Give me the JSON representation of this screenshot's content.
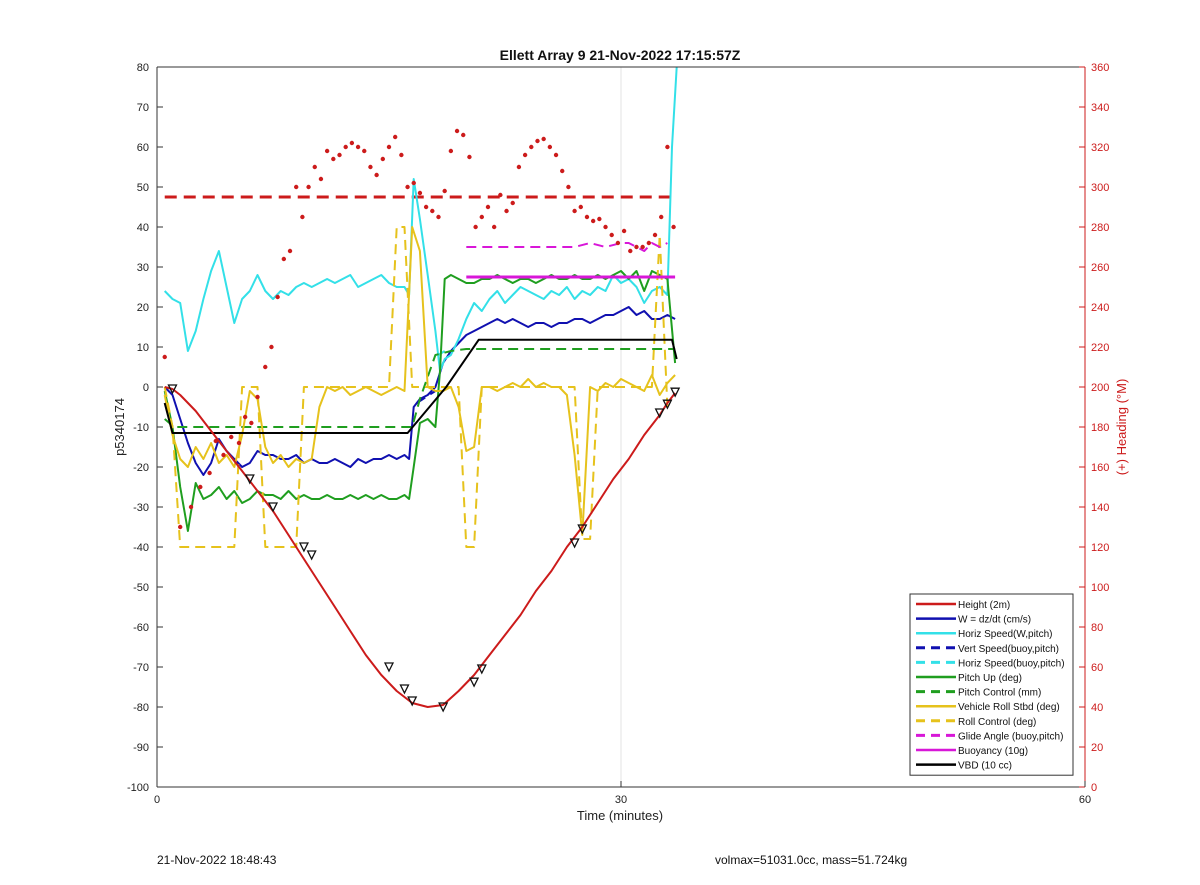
{
  "chart_data": {
    "type": "line",
    "title": "Ellett Array 9 21-Nov-2022 17:15:57Z",
    "xlabel": "Time (minutes)",
    "ylabel": "p5340174",
    "y2label": "(+) Heading (°M)",
    "xlim": [
      0,
      60
    ],
    "ylim": [
      -100,
      80
    ],
    "y2lim": [
      0,
      360
    ],
    "xticks": [
      0,
      30,
      60
    ],
    "yticks": [
      80,
      70,
      60,
      50,
      40,
      30,
      20,
      10,
      0,
      -10,
      -20,
      -30,
      -40,
      -50,
      -60,
      -70,
      -80,
      -90,
      -100
    ],
    "y2ticks": [
      360,
      340,
      320,
      300,
      280,
      260,
      240,
      220,
      200,
      180,
      160,
      140,
      120,
      100,
      80,
      60,
      40,
      20,
      0
    ],
    "grid": "x-only",
    "legend_position": "bottom-right",
    "colors": {
      "red": "#cc1b1b",
      "blue": "#1010b0",
      "cyan": "#33e0e8",
      "green": "#1f9e1f",
      "yellow": "#e6c21c",
      "magenta": "#d817d8",
      "black": "#000000"
    },
    "series": [
      {
        "name": "Height (2m)",
        "color": "#cc1b1b",
        "style": "solid",
        "width": 2,
        "x": [
          0.5,
          1.0,
          1.5,
          2.5,
          3.5,
          4.5,
          5.5,
          6.5,
          7.5,
          8.5,
          9.5,
          10.5,
          11.5,
          12.5,
          13.5,
          14.5,
          15.5,
          16.5,
          17.5,
          18.5,
          19.5,
          20.5,
          21.5,
          22.5,
          23.5,
          24.5,
          25.5,
          26.5,
          27.5,
          28.5,
          29.5,
          30.5,
          31.5,
          32.5,
          33.0,
          33.5
        ],
        "y": [
          0,
          -0.5,
          -2,
          -6,
          -11,
          -16,
          -21,
          -26,
          -31,
          -37,
          -43,
          -49,
          -55,
          -61,
          -67,
          -72,
          -76,
          -79,
          -80,
          -79.5,
          -76,
          -72,
          -67,
          -62,
          -57,
          -51,
          -46,
          -40,
          -35,
          -29,
          -23,
          -18,
          -12,
          -7,
          -4,
          -1.5
        ]
      },
      {
        "name": "W = dz/dt (cm/s)",
        "color": "#1010b0",
        "style": "solid",
        "width": 2,
        "x": [
          0.5,
          1.0,
          1.5,
          2.0,
          2.5,
          3.0,
          3.5,
          4.0,
          4.5,
          5.0,
          5.5,
          6.0,
          6.5,
          7.0,
          7.5,
          8.0,
          8.5,
          9.0,
          9.5,
          10.0,
          10.5,
          11.0,
          11.5,
          12.0,
          12.5,
          13.0,
          13.5,
          14.0,
          14.5,
          15.0,
          15.5,
          16.0,
          16.3,
          16.6,
          17.0,
          17.5,
          18.0,
          18.5,
          19.0,
          19.5,
          20.0,
          20.5,
          21.0,
          21.5,
          22.0,
          22.5,
          23.0,
          23.5,
          24.0,
          24.5,
          25.0,
          25.5,
          26.0,
          26.5,
          27.0,
          27.5,
          28.0,
          28.5,
          29.0,
          29.5,
          30.0,
          30.5,
          31.0,
          31.5,
          32.0,
          32.5,
          33.0,
          33.5
        ],
        "y": [
          0,
          -2,
          -8,
          -14,
          -19,
          -22,
          -19,
          -13,
          -16,
          -18,
          -20,
          -19,
          -16,
          -17,
          -17,
          -18,
          -18,
          -17,
          -19,
          -18,
          -19,
          -19,
          -18,
          -19,
          -20,
          -18,
          -19,
          -18,
          -18,
          -17,
          -18,
          -17,
          -18,
          -5,
          -3,
          -2,
          0,
          6,
          9,
          11,
          13,
          14,
          15,
          16,
          17,
          16,
          17,
          16,
          15,
          16,
          16,
          15,
          16,
          16,
          17,
          17,
          16,
          17,
          18,
          18,
          19,
          20,
          18,
          19,
          17,
          17,
          18,
          17
        ]
      },
      {
        "name": "Horiz Speed(W,pitch)",
        "color": "#33e0e8",
        "style": "solid",
        "width": 2,
        "x": [
          0.5,
          1.0,
          1.5,
          2.0,
          2.5,
          3.0,
          3.5,
          4.0,
          4.5,
          5.0,
          5.5,
          6.0,
          6.5,
          7.0,
          7.5,
          8.0,
          8.5,
          9.0,
          9.5,
          10.0,
          10.5,
          11.0,
          11.5,
          12.0,
          12.5,
          13.0,
          13.5,
          14.0,
          14.5,
          15.0,
          15.5,
          16.0,
          16.3,
          16.6,
          17.0,
          17.5,
          18.0,
          18.3,
          18.6,
          19.0,
          19.5,
          20.0,
          20.5,
          21.0,
          21.5,
          22.0,
          22.5,
          23.0,
          23.5,
          24.0,
          24.5,
          25.0,
          25.5,
          26.0,
          26.5,
          27.0,
          27.5,
          28.0,
          28.5,
          29.0,
          29.5,
          30.0,
          30.5,
          31.0,
          31.5,
          32.0,
          32.5,
          33.0,
          33.3,
          33.6
        ],
        "y": [
          24,
          22,
          21,
          9,
          14,
          22,
          29,
          34,
          25,
          16,
          22,
          24,
          28,
          24,
          22,
          24,
          23,
          25,
          26,
          25,
          26,
          27,
          26,
          27,
          28,
          25,
          26,
          27,
          28,
          26,
          25,
          25,
          23,
          52,
          42,
          28,
          14,
          4,
          7,
          8,
          12,
          17,
          21,
          19,
          22,
          24,
          21,
          23,
          25,
          24,
          23,
          22,
          24,
          23,
          25,
          22,
          24,
          23,
          25,
          24,
          28,
          26,
          27,
          25,
          21,
          24,
          25,
          23,
          60,
          80
        ]
      },
      {
        "name": "Vert Speed(buoy,pitch)",
        "color": "#1010b0",
        "style": "dashed",
        "width": 2,
        "x": [
          16.8,
          17.2,
          17.6,
          18.0
        ],
        "y": [
          -4,
          -3,
          -2,
          -1
        ]
      },
      {
        "name": "Horiz Speed(buoy,pitch)",
        "color": "#33e0e8",
        "style": "dashed",
        "width": 2,
        "x": [
          18.2,
          18.6
        ],
        "y": [
          8,
          9
        ]
      },
      {
        "name": "Pitch Up (deg)",
        "color": "#1f9e1f",
        "style": "solid",
        "width": 2,
        "x": [
          0.5,
          1.0,
          1.5,
          2.0,
          2.5,
          3.0,
          3.5,
          4.0,
          4.5,
          5.0,
          5.5,
          6.0,
          6.5,
          7.0,
          7.5,
          8.0,
          8.5,
          9.0,
          9.5,
          10.0,
          10.5,
          11.0,
          11.5,
          12.0,
          12.5,
          13.0,
          13.5,
          14.0,
          14.5,
          15.0,
          15.5,
          16.0,
          16.3,
          16.6,
          17.0,
          17.5,
          18.0,
          18.3,
          18.6,
          19.0,
          19.5,
          20.0,
          20.5,
          21.0,
          21.5,
          22.0,
          22.5,
          23.0,
          23.5,
          24.0,
          24.5,
          25.0,
          25.5,
          26.0,
          26.5,
          27.0,
          27.5,
          28.0,
          28.5,
          29.0,
          29.5,
          30.0,
          30.5,
          31.0,
          31.5,
          32.0,
          32.5,
          33.0,
          33.5
        ],
        "y": [
          -1,
          -10,
          -25,
          -36,
          -24,
          -28,
          -27,
          -25,
          -28,
          -26,
          -29,
          -28,
          -26,
          -27,
          -27,
          -28,
          -26,
          -28,
          -27,
          -28,
          -28,
          -27,
          -28,
          -28,
          -27,
          -28,
          -27,
          -28,
          -27,
          -28,
          -28,
          -27,
          -28,
          -20,
          -9,
          -8,
          -10,
          4,
          27,
          28,
          27,
          26,
          26,
          27,
          27,
          28,
          27,
          26,
          27,
          27,
          26,
          27,
          28,
          27,
          27,
          28,
          27,
          27,
          28,
          27,
          28,
          29,
          27,
          29,
          24,
          29,
          28,
          27,
          6
        ]
      },
      {
        "name": "Pitch Control (mm)",
        "color": "#1f9e1f",
        "style": "dashed",
        "width": 2,
        "x": [
          0.5,
          0.8,
          1.0,
          16.0,
          16.5,
          17.0,
          18.0,
          19.0,
          20.0,
          33.5
        ],
        "y": [
          -8,
          -9,
          -10,
          -10,
          -10,
          -3,
          8,
          9,
          9.5,
          9.5
        ]
      },
      {
        "name": "Vehicle Roll Stbd (deg)",
        "color": "#e6c21c",
        "style": "solid",
        "width": 2,
        "x": [
          0.5,
          1.0,
          1.5,
          2.0,
          2.5,
          3.0,
          3.5,
          4.0,
          4.5,
          5.0,
          5.5,
          6.0,
          6.5,
          7.0,
          7.5,
          8.0,
          8.5,
          9.0,
          9.5,
          10.0,
          10.5,
          11.0,
          11.5,
          12.0,
          12.5,
          13.0,
          13.5,
          14.0,
          14.5,
          15.0,
          15.5,
          16.0,
          16.5,
          17.0,
          17.5,
          18.0,
          18.5,
          19.0,
          19.5,
          20.0,
          20.5,
          21.0,
          21.5,
          22.0,
          22.5,
          23.0,
          23.5,
          24.0,
          24.5,
          25.0,
          25.5,
          26.0,
          26.5,
          27.0,
          27.5,
          28.0,
          28.5,
          29.0,
          29.5,
          30.0,
          30.5,
          31.0,
          31.5,
          32.0,
          32.5,
          33.0,
          33.5
        ],
        "y": [
          -2,
          -12,
          -18,
          -20,
          -15,
          -18,
          -14,
          -19,
          -17,
          -20,
          -12,
          -1,
          -3,
          -15,
          -19,
          -17,
          -20,
          -18,
          -19,
          -18,
          -5,
          0,
          -1,
          0,
          -2,
          -1,
          0,
          -1,
          -2,
          -1,
          0,
          -1,
          40,
          34,
          0,
          -1,
          -1,
          0,
          -5,
          -16,
          -15,
          0,
          0,
          -1,
          0,
          1,
          0,
          2,
          0,
          1,
          0,
          0,
          -2,
          -17,
          -37,
          0,
          -1,
          1,
          0,
          2,
          1,
          0,
          -1,
          3,
          -2,
          1,
          3
        ]
      },
      {
        "name": "Roll Control (deg)",
        "color": "#e6c21c",
        "style": "dashed",
        "width": 2,
        "x": [
          0.5,
          1.0,
          1.5,
          4.5,
          5.0,
          5.5,
          6.5,
          7.0,
          7.5,
          8.5,
          9.0,
          9.5,
          10.0,
          15.0,
          15.5,
          16.0,
          16.5,
          17.0,
          18.0,
          19.0,
          19.5,
          20.0,
          20.5,
          21.0,
          21.5,
          22.0,
          22.5,
          27.0,
          27.5,
          28.0,
          28.5,
          29.0,
          32.0,
          32.5,
          33.0
        ],
        "y": [
          0,
          -10,
          -40,
          -40,
          -40,
          0,
          0,
          -40,
          -40,
          -40,
          -40,
          0,
          0,
          0,
          40,
          40,
          0,
          0,
          0,
          0,
          0,
          -40,
          -40,
          0,
          0,
          0,
          0,
          0,
          -38,
          -38,
          0,
          0,
          0,
          38,
          -5
        ]
      },
      {
        "name": "Glide Angle (buoy,pitch)",
        "color": "#d817d8",
        "style": "dashed",
        "width": 2,
        "x": [
          20.0,
          21.0,
          22.0,
          23.0,
          24.0,
          25.0,
          26.0,
          27.0,
          28.0,
          29.0,
          30.0,
          30.5,
          31.0,
          31.5,
          32.0,
          32.5,
          33.0
        ],
        "y": [
          35,
          35,
          35,
          35,
          35,
          35,
          35,
          35,
          36,
          35,
          36,
          36,
          35,
          34,
          36,
          35,
          36
        ]
      },
      {
        "name": "Buoyancy (10g)",
        "color": "#d817d8",
        "style": "solid",
        "width": 3,
        "x": [
          20.0,
          33.5
        ],
        "y": [
          27.5,
          27.5
        ]
      },
      {
        "name": "VBD (10 cc)",
        "color": "#000000",
        "style": "solid",
        "width": 2,
        "x": [
          0.5,
          1.0,
          16.2,
          18.7,
          20.8,
          33.3,
          33.6
        ],
        "y": [
          -4,
          -11.5,
          -11.5,
          0,
          11.8,
          11.8,
          7
        ]
      }
    ],
    "heading_reference": {
      "axis": "right",
      "color": "#cc1b1b",
      "style": "dashed",
      "value": 295
    },
    "heading_points": {
      "axis": "right",
      "color": "#cc1b1b",
      "x": [
        0.5,
        1.5,
        2.2,
        2.8,
        3.4,
        3.8,
        4.3,
        4.8,
        5.3,
        5.7,
        6.1,
        6.5,
        7.0,
        7.4,
        7.8,
        8.2,
        8.6,
        9.0,
        9.4,
        9.8,
        10.2,
        10.6,
        11.0,
        11.4,
        11.8,
        12.2,
        12.6,
        13.0,
        13.4,
        13.8,
        14.2,
        14.6,
        15.0,
        15.4,
        15.8,
        16.2,
        16.6,
        17.0,
        17.4,
        17.8,
        18.2,
        18.6,
        19.0,
        19.4,
        19.8,
        20.2,
        20.6,
        21.0,
        21.4,
        21.8,
        22.2,
        22.6,
        23.0,
        23.4,
        23.8,
        24.2,
        24.6,
        25.0,
        25.4,
        25.8,
        26.2,
        26.6,
        27.0,
        27.4,
        27.8,
        28.2,
        28.6,
        29.0,
        29.4,
        29.8,
        30.2,
        30.6,
        31.0,
        31.4,
        31.8,
        32.2,
        32.6,
        33.0,
        33.4
      ],
      "y": [
        215,
        130,
        140,
        150,
        157,
        173,
        166,
        175,
        172,
        185,
        182,
        195,
        210,
        220,
        245,
        264,
        268,
        300,
        285,
        300,
        310,
        304,
        318,
        314,
        316,
        320,
        322,
        320,
        318,
        310,
        306,
        314,
        320,
        325,
        316,
        300,
        302,
        297,
        290,
        288,
        285,
        298,
        318,
        328,
        326,
        315,
        280,
        285,
        290,
        280,
        296,
        288,
        292,
        310,
        316,
        320,
        323,
        324,
        320,
        316,
        308,
        300,
        288,
        290,
        285,
        283,
        284,
        280,
        276,
        272,
        278,
        268,
        270,
        270,
        272,
        276,
        285,
        320,
        280
      ]
    },
    "markers": {
      "description": "triangle markers along Height curve",
      "x": [
        1.0,
        6.0,
        7.5,
        9.5,
        10.0,
        15.0,
        16.0,
        16.5,
        18.5,
        20.5,
        21.0,
        27.0,
        27.5,
        32.5,
        33.0,
        33.5
      ],
      "y": [
        -0.5,
        -23,
        -30,
        -40,
        -42,
        -70,
        -75.5,
        -78.5,
        -80,
        -73.8,
        -70.5,
        -39,
        -35.5,
        -6.5,
        -4.3,
        -1.3
      ]
    }
  },
  "footer": {
    "timestamp": "21-Nov-2022 18:48:43",
    "summary": "volmax=51031.0cc, mass=51.724kg"
  }
}
